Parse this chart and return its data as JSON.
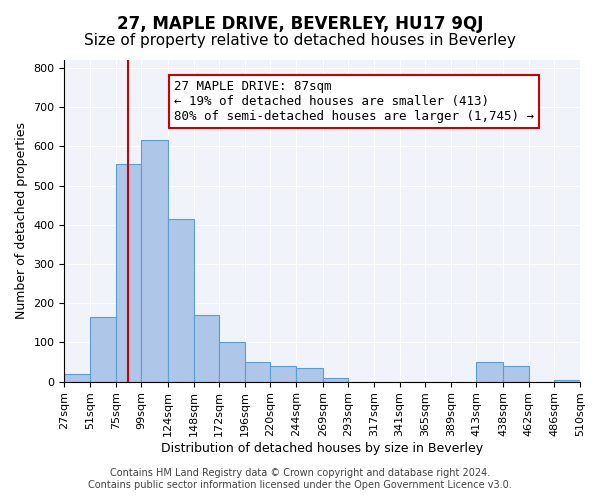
{
  "title": "27, MAPLE DRIVE, BEVERLEY, HU17 9QJ",
  "subtitle": "Size of property relative to detached houses in Beverley",
  "xlabel": "Distribution of detached houses by size in Beverley",
  "ylabel": "Number of detached properties",
  "bin_labels": [
    "27sqm",
    "51sqm",
    "75sqm",
    "99sqm",
    "124sqm",
    "148sqm",
    "172sqm",
    "196sqm",
    "220sqm",
    "244sqm",
    "269sqm",
    "293sqm",
    "317sqm",
    "341sqm",
    "365sqm",
    "389sqm",
    "413sqm",
    "438sqm",
    "462sqm",
    "486sqm",
    "510sqm"
  ],
  "bin_edges": [
    27,
    51,
    75,
    99,
    124,
    148,
    172,
    196,
    220,
    244,
    269,
    293,
    317,
    341,
    365,
    389,
    413,
    438,
    462,
    486,
    510
  ],
  "bar_heights": [
    20,
    165,
    555,
    615,
    415,
    170,
    100,
    50,
    40,
    35,
    10,
    0,
    0,
    0,
    0,
    0,
    50,
    40,
    0,
    5
  ],
  "bar_color": "#aec6e8",
  "bar_edge_color": "#5a9fd4",
  "ylim": [
    0,
    820
  ],
  "yticks": [
    0,
    100,
    200,
    300,
    400,
    500,
    600,
    700,
    800
  ],
  "property_sqm": 87,
  "vline_color": "#cc0000",
  "annotation_text": "27 MAPLE DRIVE: 87sqm\n← 19% of detached houses are smaller (413)\n80% of semi-detached houses are larger (1,745) →",
  "annotation_box_color": "#ffffff",
  "annotation_box_edgecolor": "#cc0000",
  "footer_line1": "Contains HM Land Registry data © Crown copyright and database right 2024.",
  "footer_line2": "Contains public sector information licensed under the Open Government Licence v3.0.",
  "background_color": "#f0f4fa",
  "title_fontsize": 12,
  "subtitle_fontsize": 11,
  "axis_label_fontsize": 9,
  "tick_fontsize": 8,
  "annotation_fontsize": 9,
  "footer_fontsize": 7
}
